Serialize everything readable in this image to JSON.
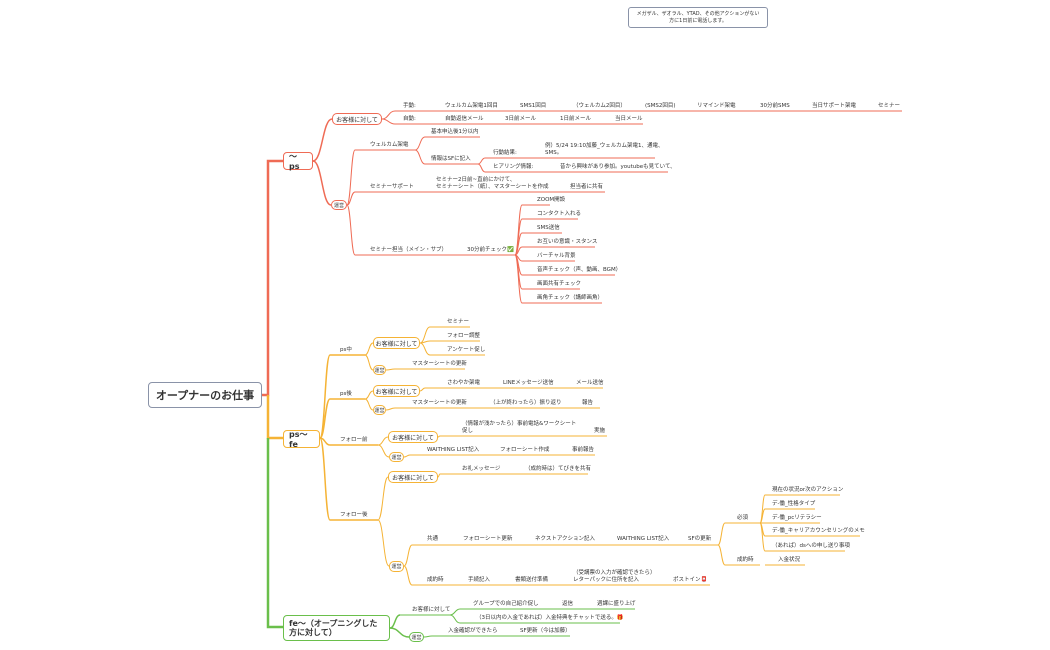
{
  "colors": {
    "ps": "#ef6b55",
    "psfe": "#f5b335",
    "fe": "#6abf4b",
    "root_border": "#8a93a8"
  },
  "note": {
    "line1": "メガザル、ザオラル、YTAD、その他アクションがない",
    "line2": "方に1日前に電話します。"
  },
  "root": "オープナーのお仕事",
  "ps": {
    "title": "〜ps",
    "customer": {
      "label": "お客様に対して",
      "manual": [
        "手動:",
        "ウェルカム架電1回目",
        "SMS1回目",
        "（ウェルカム2回目）",
        "(SMS2回目)",
        "リマインド架電",
        "30分前SMS",
        "当日サポート架電",
        "セミナー"
      ],
      "auto": [
        "自動:",
        "自動返信メール",
        "3日前メール",
        "1日前メール",
        "当日メール"
      ]
    },
    "ops": {
      "label": "運営",
      "welcome": "ウェルカム架電",
      "within": "基本申込後1分以内",
      "sf": "情報はSFに記入",
      "result_label": "行動結果:",
      "result_line1": "例）5/24 19:10加藤_ウェルカム架電1、通電、",
      "result_line2": "SMS。",
      "hearing_label": "ヒアリング情報:",
      "hearing": "昔から興味があり参加。youtubeも見ていて、",
      "support": "セミナーサポート",
      "support_line1": "セミナー2日前~直前にかけて、",
      "support_line2": "セミナーシート（紙）、マスターシートを作成",
      "share": "担当者に共有",
      "seminar": "セミナー担当（メイン・サブ）",
      "check": "30分前チェック✅",
      "checks": [
        "ZOOM開設",
        "コンタクト入れる",
        "SMS送信",
        "お互いの意識・スタンス",
        "バーチャル背景",
        "音声チェック（声、動画、BGM）",
        "画面共有チェック",
        "画角チェック（講師画角）"
      ]
    }
  },
  "psfe": {
    "title": "ps〜fe",
    "during": {
      "label": "ps中",
      "customer": "お客様に対して",
      "items": [
        "セミナー",
        "フォロー調整",
        "アンケート促し"
      ],
      "ops": "運営",
      "ops_item": "マスターシートの更新"
    },
    "after": {
      "label": "ps後",
      "customer": "お客様に対して",
      "items": [
        "さわやか架電",
        "LINEメッセージ送信",
        "メール送信"
      ],
      "ops": "運営",
      "ops_items": [
        "マスターシートの更新",
        "（上が終わったら）振り返り",
        "報告"
      ]
    },
    "before_follow": {
      "label": "フォロー前",
      "customer": "お客様に対して",
      "item_line1": "（情報が浅かったら）事前電話&ワークシート",
      "item_line2": "促し",
      "item_end": "実施",
      "ops": "運営",
      "ops_items": [
        "WAITHING LIST記入",
        "フォローシート作成",
        "事前報告"
      ]
    },
    "after_follow": {
      "label": "フォロー後",
      "customer": "お客様に対して",
      "items": [
        "お礼メッセージ",
        "（成約時は）てびきを共有"
      ],
      "ops": "運営",
      "common": [
        "共通",
        "フォローシート更新",
        "ネクストアクション記入",
        "WAITHING LIST記入",
        "SFの更新"
      ],
      "required": "必須",
      "required_items": [
        "現在の状況or次のアクション",
        "デ-働_性格タイプ",
        "デ-働_pcリテラシー",
        "デ-働_キャリアカウンセリングのメモ",
        "（あれば）dsへの申し送り事項"
      ],
      "contract": "成約時",
      "contract_item": "入金状況",
      "contract2": [
        "成約時",
        "手続記入",
        "書類送付準備"
      ],
      "letter_line1": "（受講票の入力が確認できたら）",
      "letter_line2": "レターパックに住所を記入",
      "post": "ポストイン📮"
    }
  },
  "fe": {
    "title": "fe〜（オープニングした方に対して）",
    "customer": "お客様に対して",
    "items": [
      "グループでの自己紹介促し",
      "返信",
      "週課に盛り上げ"
    ],
    "bonus": "（3日以内の入金であれば）入金特典をチャットで送る。🎁",
    "ops": "運営",
    "ops_items": [
      "入金確認ができたら",
      "SF更新（今は加藤）"
    ]
  }
}
